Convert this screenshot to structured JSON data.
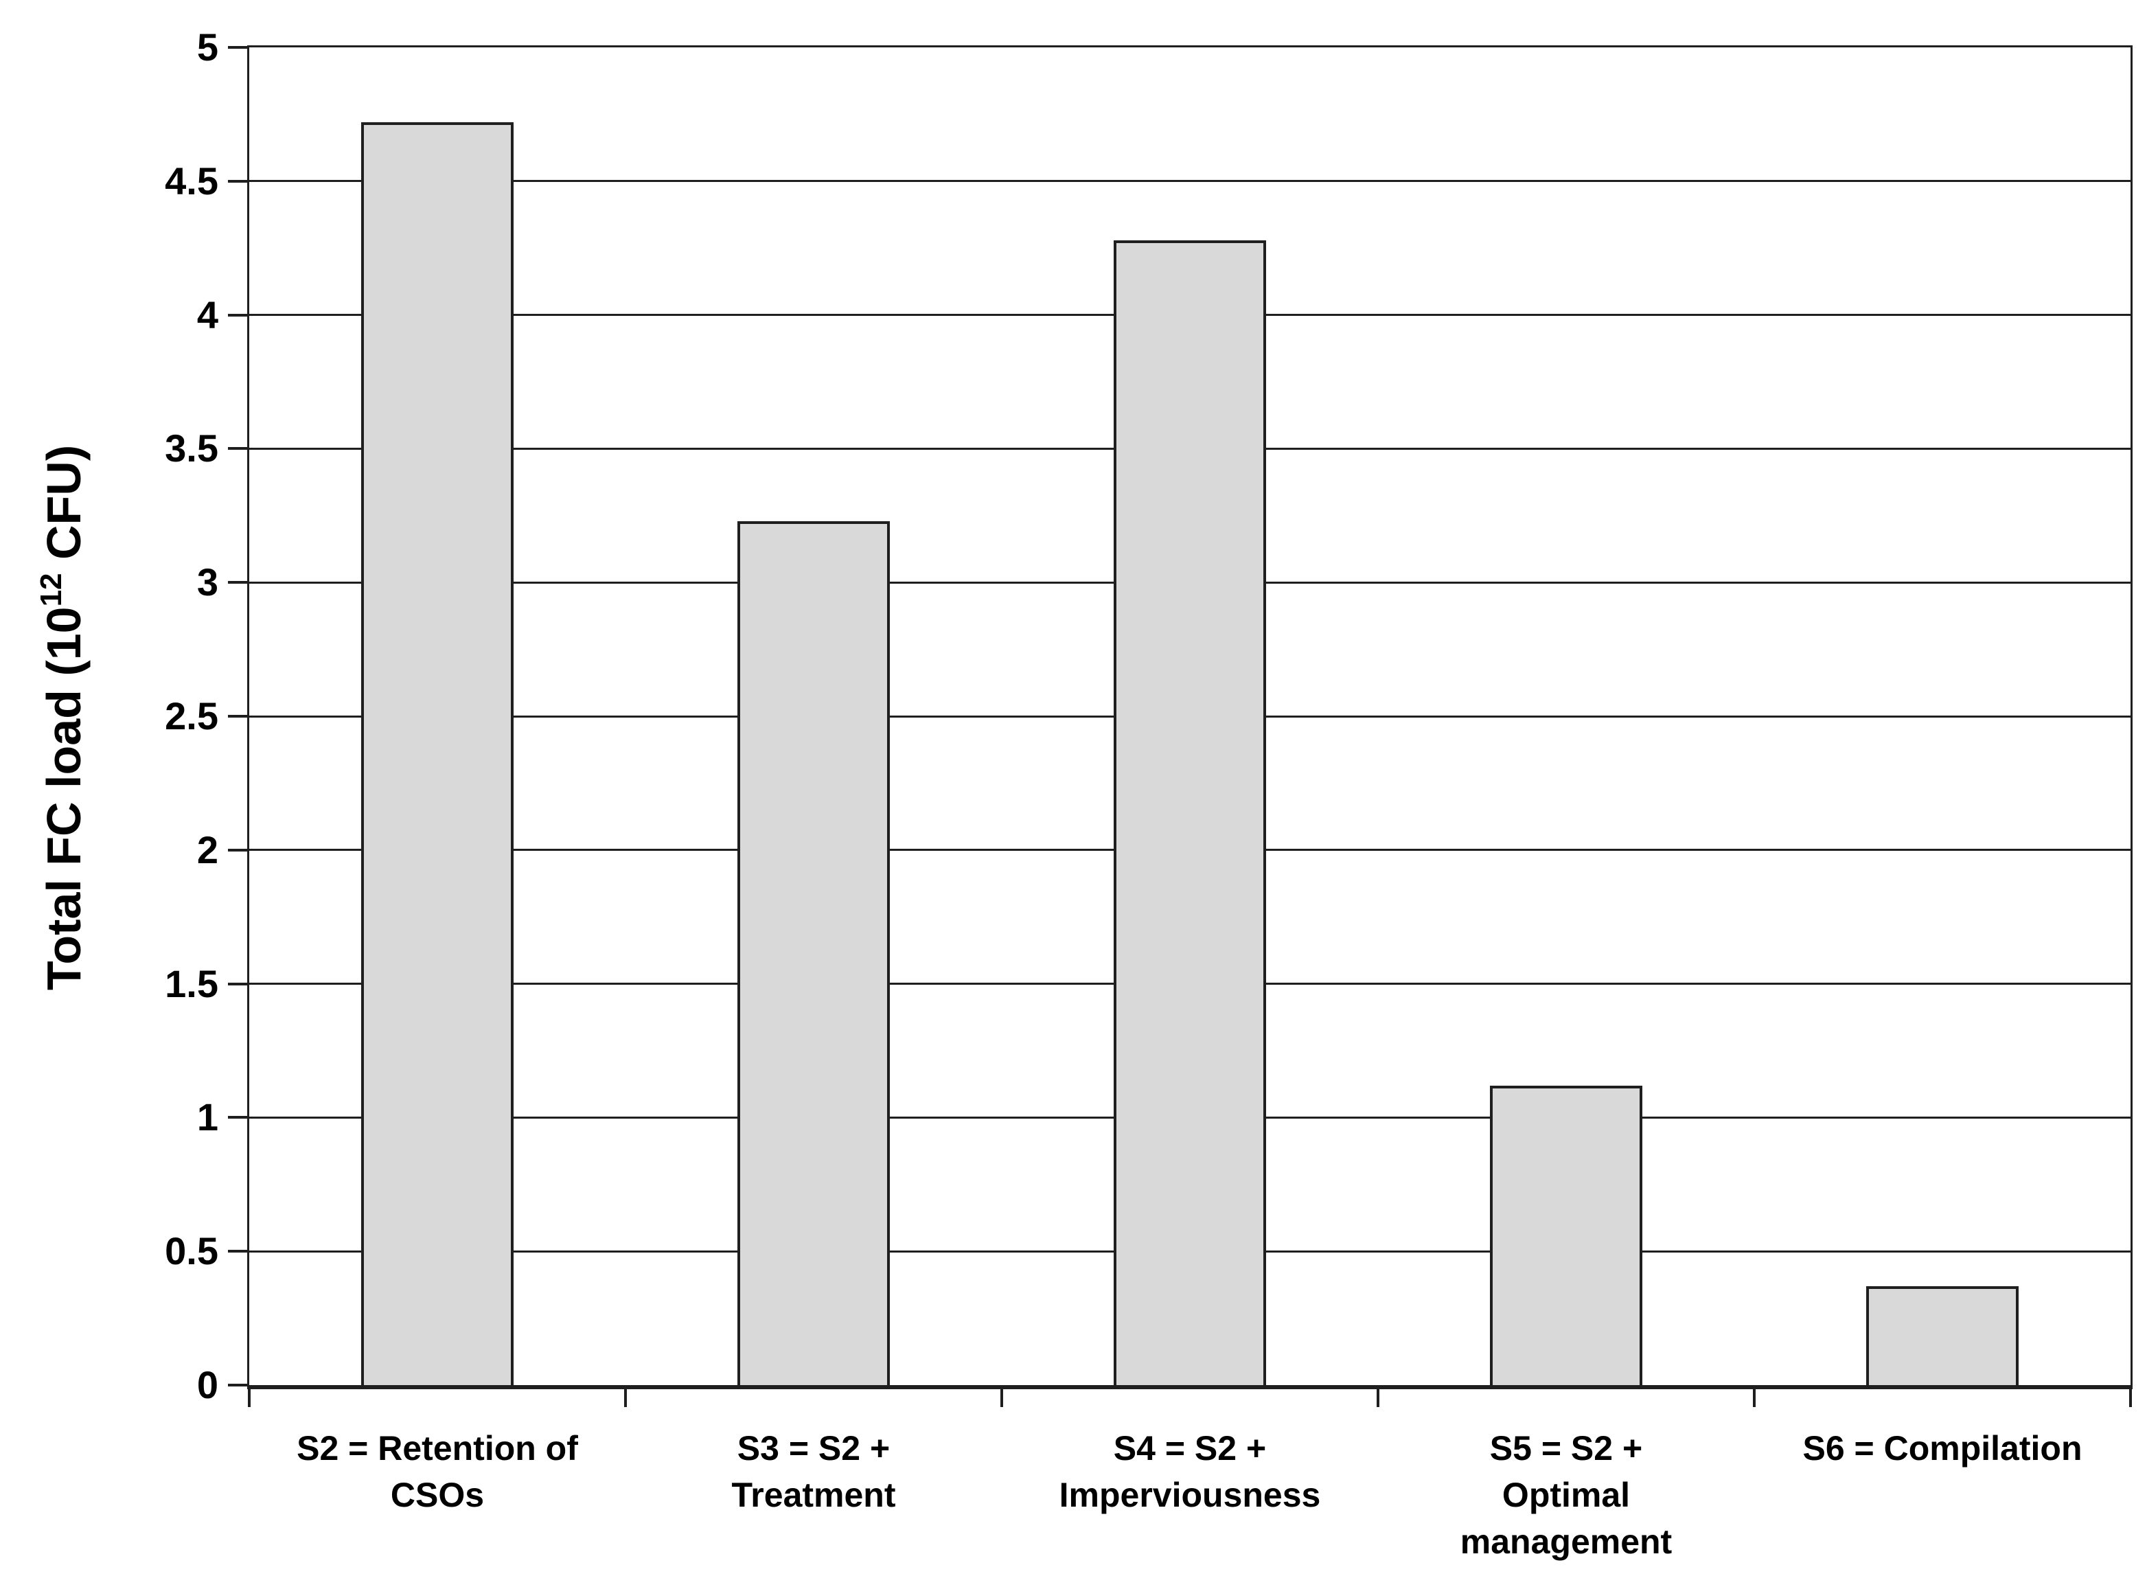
{
  "chart_data": {
    "type": "bar",
    "title": "",
    "ylabel": "Total FC load (10^12 CFU)",
    "ylabel_parts": {
      "prefix": "Total FC load (10",
      "superscript": "12",
      "suffix": " CFU)"
    },
    "categories": [
      "S2 = Retention of\nCSOs",
      "S3 = S2 +\nTreatment",
      "S4 = S2 +\nImperviousness",
      "S5 = S2 +\nOptimal\nmanagement",
      "S6 = Compilation"
    ],
    "values": [
      4.72,
      3.23,
      4.28,
      1.12,
      0.37
    ],
    "xlabel": "",
    "ylim": [
      0,
      5
    ],
    "ytick_step": 0.5,
    "yticks": [
      "0",
      "0.5",
      "1",
      "1.5",
      "2",
      "2.5",
      "3",
      "3.5",
      "4",
      "4.5",
      "5"
    ],
    "grid": true,
    "legend": "none",
    "colors": {
      "bar_fill": "#d9d9d9",
      "bar_border": "#1f1f1f",
      "line": "#1f1f1f",
      "text": "#000000",
      "background": "#ffffff"
    }
  }
}
